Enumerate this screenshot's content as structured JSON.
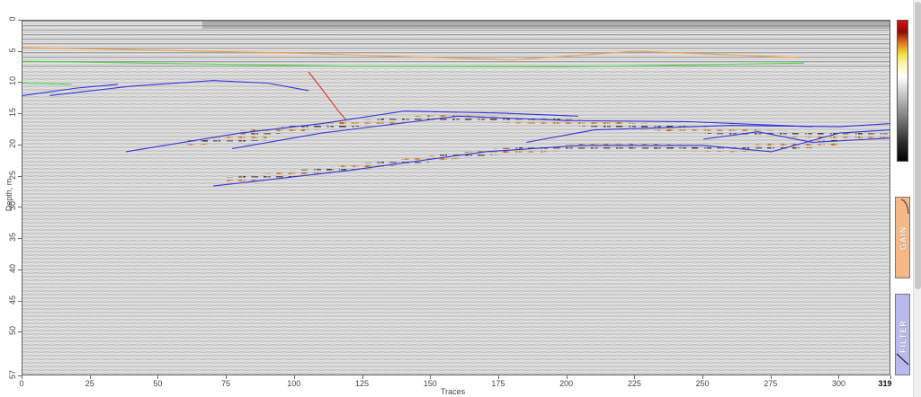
{
  "axes": {
    "y_label": "Depth, m",
    "x_label": "Traces",
    "y_ticks": [
      "0",
      "5",
      "10",
      "15",
      "20",
      "25",
      "30",
      "35",
      "40",
      "45",
      "50",
      "57"
    ],
    "x_ticks": [
      "0",
      "25",
      "50",
      "75",
      "100",
      "125",
      "150",
      "175",
      "200",
      "225",
      "250",
      "275",
      "300",
      "319"
    ]
  },
  "panels": {
    "gain_label": "GAIN",
    "filter_label": "FILTER"
  },
  "colors": {
    "horizon_blue": "#3333dd",
    "horizon_green": "#44dd44",
    "horizon_orange": "#f0a050",
    "fault_red": "#e03030",
    "gain_panel": "#f7b783",
    "filter_panel": "#b9b9ef"
  },
  "chart_data": {
    "type": "heatmap",
    "title": "",
    "xlabel": "Traces",
    "ylabel": "Depth, m",
    "xlim": [
      0,
      319
    ],
    "ylim": [
      57,
      0
    ],
    "lines": [
      {
        "color": "orange",
        "points": [
          [
            0,
            4.3
          ],
          [
            100,
            5.2
          ],
          [
            180,
            6.3
          ],
          [
            225,
            4.9
          ],
          [
            285,
            5.9
          ]
        ]
      },
      {
        "color": "green",
        "points": [
          [
            0,
            6.5
          ],
          [
            120,
            7.3
          ],
          [
            200,
            7.4
          ],
          [
            287,
            6.8
          ]
        ]
      },
      {
        "color": "green",
        "points": [
          [
            0,
            10.0
          ],
          [
            18,
            10.2
          ]
        ]
      },
      {
        "color": "blue",
        "points": [
          [
            0,
            12
          ],
          [
            20,
            10.8
          ],
          [
            35,
            10.2
          ]
        ]
      },
      {
        "color": "blue",
        "points": [
          [
            10,
            12
          ],
          [
            40,
            10.5
          ],
          [
            70,
            9.6
          ],
          [
            90,
            10
          ],
          [
            105,
            11.2
          ]
        ]
      },
      {
        "color": "blue",
        "points": [
          [
            38,
            21
          ],
          [
            80,
            18
          ],
          [
            110,
            16.5
          ],
          [
            140,
            14.5
          ],
          [
            175,
            14.8
          ],
          [
            204,
            15.3
          ]
        ]
      },
      {
        "color": "blue",
        "points": [
          [
            77,
            20.5
          ],
          [
            110,
            18
          ],
          [
            160,
            15.3
          ],
          [
            200,
            16
          ],
          [
            245,
            16.2
          ],
          [
            290,
            17
          ]
        ]
      },
      {
        "color": "blue",
        "points": [
          [
            70,
            26.5
          ],
          [
            120,
            24
          ],
          [
            170,
            21
          ],
          [
            205,
            20
          ],
          [
            250,
            20
          ],
          [
            275,
            21
          ],
          [
            300,
            18
          ],
          [
            319,
            17.5
          ]
        ]
      },
      {
        "color": "blue",
        "points": [
          [
            185,
            19.5
          ],
          [
            210,
            17.5
          ],
          [
            260,
            16.8
          ],
          [
            300,
            17
          ],
          [
            319,
            16.5
          ]
        ]
      },
      {
        "color": "blue",
        "points": [
          [
            250,
            19
          ],
          [
            270,
            17.8
          ],
          [
            290,
            19.5
          ],
          [
            319,
            18.8
          ]
        ]
      },
      {
        "color": "red",
        "points": [
          [
            105,
            8.2
          ],
          [
            110,
            11
          ],
          [
            116,
            14.5
          ],
          [
            119,
            16
          ]
        ]
      }
    ]
  }
}
